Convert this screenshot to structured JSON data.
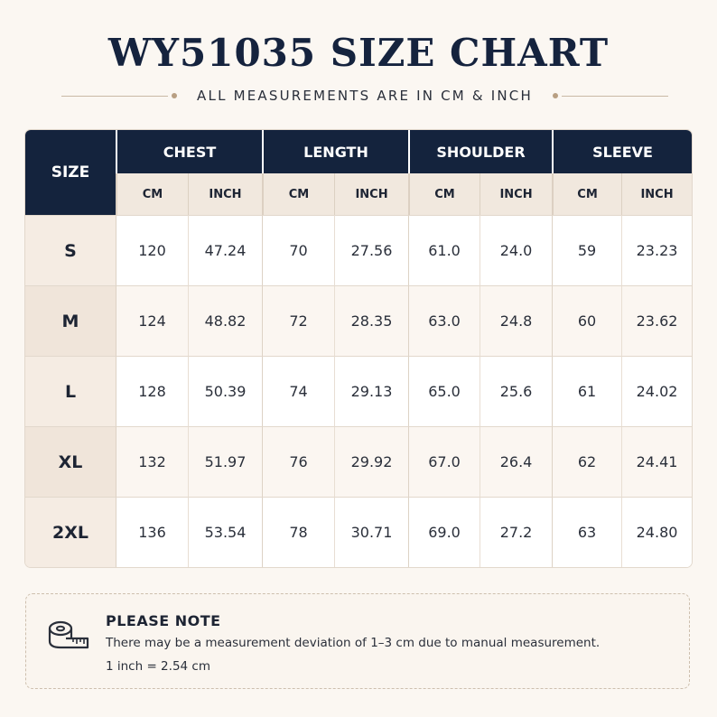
{
  "title": "WY51035 SIZE CHART",
  "subtitle": "ALL MEASUREMENTS ARE IN CM & INCH",
  "table": {
    "size_header": "SIZE",
    "groups": [
      "CHEST",
      "LENGTH",
      "SHOULDER",
      "SLEEVE"
    ],
    "units": [
      "CM",
      "INCH",
      "CM",
      "INCH",
      "CM",
      "INCH",
      "CM",
      "INCH"
    ],
    "rows": [
      {
        "size": "S",
        "values": [
          "120",
          "47.24",
          "70",
          "27.56",
          "61.0",
          "24.0",
          "59",
          "23.23"
        ]
      },
      {
        "size": "M",
        "values": [
          "124",
          "48.82",
          "72",
          "28.35",
          "63.0",
          "24.8",
          "60",
          "23.62"
        ]
      },
      {
        "size": "L",
        "values": [
          "128",
          "50.39",
          "74",
          "29.13",
          "65.0",
          "25.6",
          "61",
          "24.02"
        ]
      },
      {
        "size": "XL",
        "values": [
          "132",
          "51.97",
          "76",
          "29.92",
          "67.0",
          "26.4",
          "62",
          "24.41"
        ]
      },
      {
        "size": "2XL",
        "values": [
          "136",
          "53.54",
          "78",
          "30.71",
          "69.0",
          "27.2",
          "63",
          "24.80"
        ]
      }
    ]
  },
  "note": {
    "icon": "measuring-tape-icon",
    "heading": "PLEASE NOTE",
    "text": "There may be a measurement deviation of 1–3 cm due to manual measurement.",
    "conversion": "1 inch = 2.54 cm"
  },
  "colors": {
    "header_navy": "#14233d",
    "background": "#fbf7f2",
    "accent_beige": "#f1e8de"
  }
}
